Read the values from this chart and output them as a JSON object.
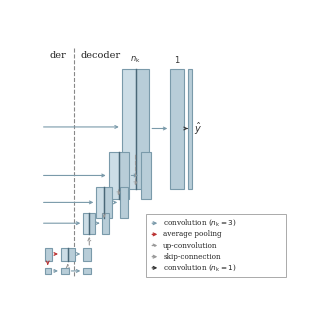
{
  "bg_color": "#ffffff",
  "box_fill": "#b8cdd8",
  "box_fill_light": "#ccdde6",
  "box_edge": "#7a9aaa",
  "box_dark_edge": "#4a6878",
  "arrow_blue": "#7a9aaa",
  "arrow_red": "#bb3333",
  "arrow_gray": "#999999",
  "arrow_dark": "#333333",
  "encoder_label": "der",
  "decoder_label": "decoder",
  "nk_label": "$n_{\\mathrm{k}}$",
  "one_label": "1",
  "y_label": "$\\hat{y}$",
  "legend_items": [
    {
      "label": "convolution ($n_{\\mathrm{k}} = 3$)",
      "color": "#7a9aaa",
      "ls": "solid"
    },
    {
      "label": "average pooling",
      "color": "#bb3333",
      "ls": "solid"
    },
    {
      "label": "up-convolution",
      "color": "#999999",
      "ls": "dashed"
    },
    {
      "label": "skip-connection",
      "color": "#999999",
      "ls": "solid"
    },
    {
      "label": "convolution ($n_{\\mathrm{k}} = 1$)",
      "color": "#333333",
      "ls": "solid"
    }
  ]
}
